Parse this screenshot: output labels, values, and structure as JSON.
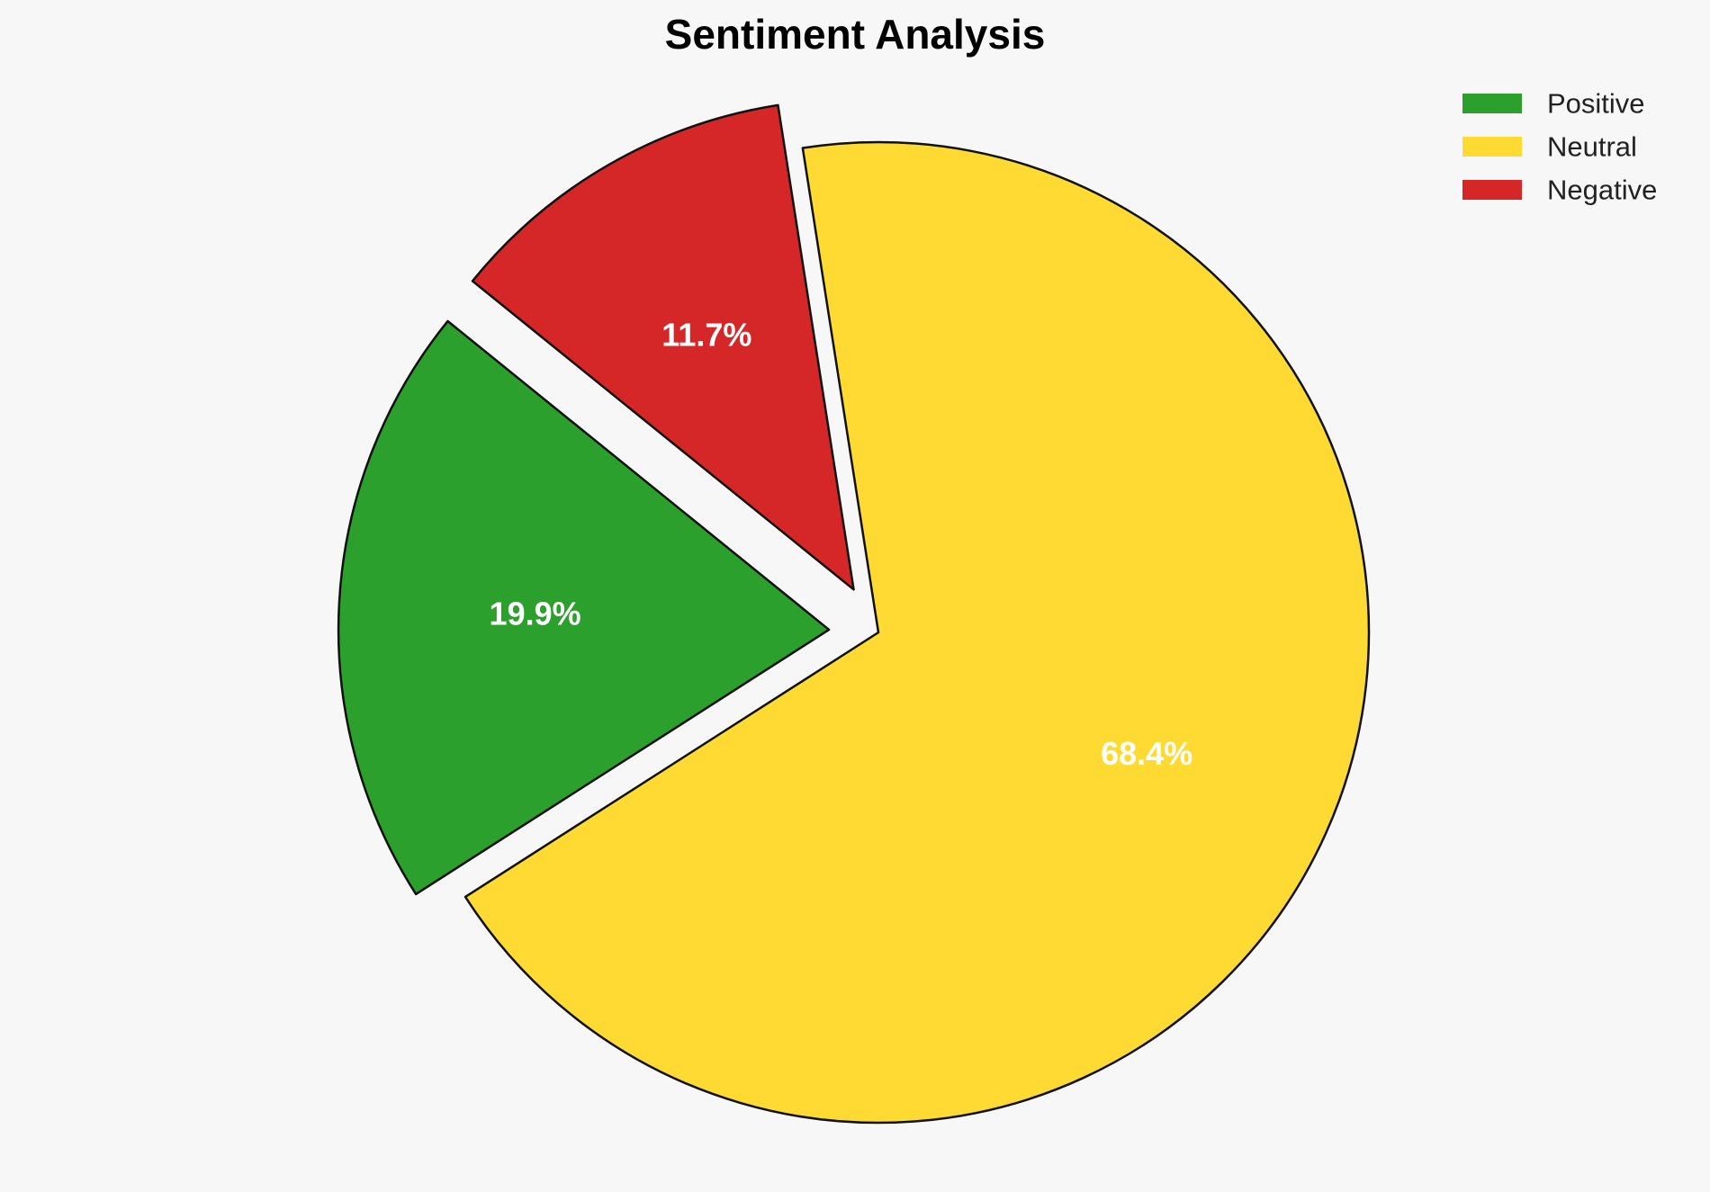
{
  "chart_data": {
    "type": "pie",
    "title": "Sentiment Analysis",
    "categories": [
      "Positive",
      "Neutral",
      "Negative"
    ],
    "values": [
      19.9,
      68.4,
      11.7
    ],
    "value_labels": [
      "19.9%",
      "68.4%",
      "11.7%"
    ],
    "colors": [
      "#2ca02c",
      "#ffda33",
      "#d62728"
    ],
    "exploded": [
      true,
      false,
      true
    ],
    "start_angle_deg": 141,
    "direction": "counterclockwise",
    "legend": {
      "placement": "top-right",
      "entries": [
        "Positive",
        "Neutral",
        "Negative"
      ]
    }
  }
}
